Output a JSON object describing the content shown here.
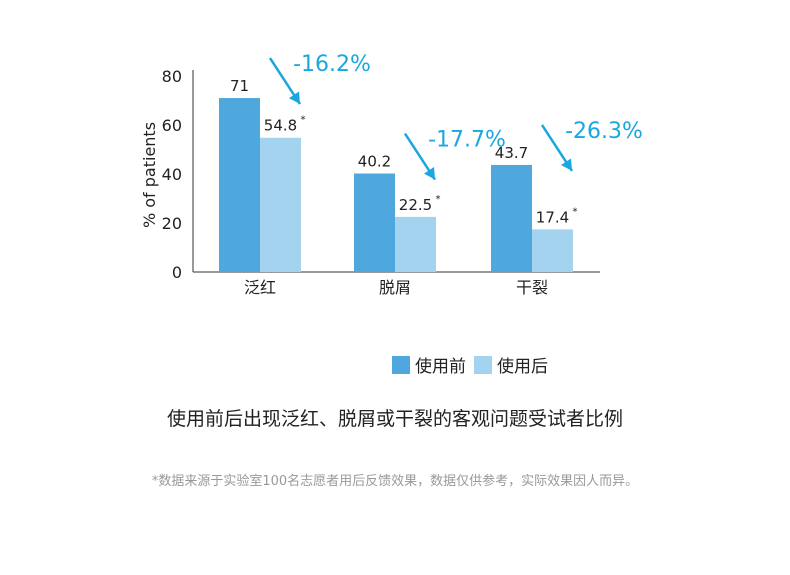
{
  "chart_data": {
    "type": "bar",
    "ylabel": "% of patients",
    "ylim": [
      0,
      80
    ],
    "yticks": [
      0,
      20,
      40,
      60,
      80
    ],
    "categories": [
      "泛红",
      "脱屑",
      "干裂"
    ],
    "series": [
      {
        "name": "使用前",
        "values": [
          71,
          40.2,
          43.7
        ],
        "labels": [
          "71",
          "40.2",
          "43.7"
        ],
        "color": "#4ea8dd"
      },
      {
        "name": "使用后",
        "values": [
          54.8,
          22.5,
          17.4
        ],
        "labels": [
          "54.8",
          "22.5",
          "17.4"
        ],
        "marker": "*",
        "color": "#a4d3f0"
      }
    ],
    "reductions": [
      "-16.2%",
      "-17.7%",
      "-26.3%"
    ],
    "reduction_color": "#1aa7e0",
    "grid": false
  },
  "legend": {
    "before": "使用前",
    "after": "使用后"
  },
  "caption": "使用前后出现泛红、脱屑或干裂的客观问题受试者比例",
  "footnote": "*数据来源于实验室100名志愿者用后反馈效果，数据仅供参考，实际效果因人而异。"
}
